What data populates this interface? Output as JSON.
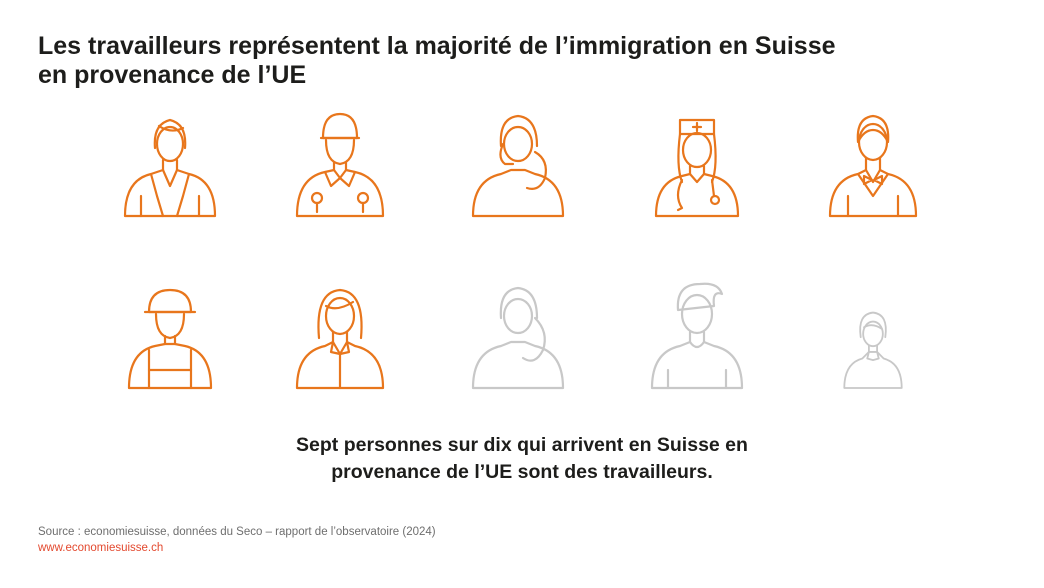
{
  "title_lines": [
    "Les travailleurs représentent la majorité de l’immigration en Suisse",
    "en provenance de l’UE"
  ],
  "headline_lines": [
    "Sept personnes sur dix qui arrivent en Suisse en",
    "provenance de l’UE sont des travailleurs."
  ],
  "footer": {
    "source": "Source : economiesuisse, données du Seco – rapport de l’observatoire (2024)",
    "website": "www.economiesuisse.ch"
  },
  "colors": {
    "highlight": "#e8761c",
    "muted": "#c8c8c8",
    "link": "#e3492f"
  },
  "chart_data": {
    "type": "pictogram",
    "total_icons": 10,
    "highlighted_icons": 7,
    "share_workers": 0.7,
    "icons": [
      {
        "figure": "woman-blazer",
        "highlighted": true
      },
      {
        "figure": "mechanic-cap",
        "highlighted": true
      },
      {
        "figure": "call-center-headset",
        "highlighted": true
      },
      {
        "figure": "nurse-stethoscope",
        "highlighted": true
      },
      {
        "figure": "waiter-bowtie",
        "highlighted": true
      },
      {
        "figure": "worker-helmet-overalls",
        "highlighted": true
      },
      {
        "figure": "woman-collar",
        "highlighted": true
      },
      {
        "figure": "woman-ponytail",
        "highlighted": false
      },
      {
        "figure": "man-tshirt",
        "highlighted": false
      },
      {
        "figure": "girl-child",
        "highlighted": false
      }
    ]
  }
}
